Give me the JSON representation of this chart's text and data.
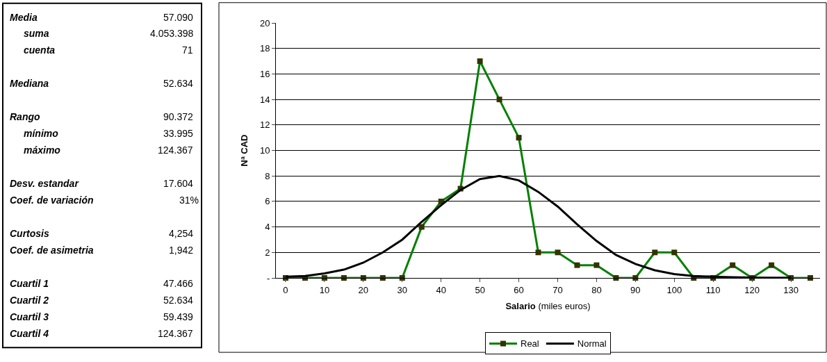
{
  "chart_data": [
    {
      "type": "other",
      "annotations": [
        "Media",
        "57.090",
        "suma",
        "4.053.398",
        "cuenta",
        "71",
        "Mediana",
        "52.634",
        "Rango",
        "90.372",
        "mínimo",
        "33.995",
        "máximo",
        "124.367",
        "Desv. estandar",
        "17.604",
        "Coef. de variación",
        "31%",
        "Curtosis",
        "4,254",
        "Coef. de asimetria",
        "1,942",
        "Cuartil 1",
        "47.466",
        "Cuartil 2",
        "52.634",
        "Cuartil 3",
        "59.439",
        "Cuartil 4",
        "124.367"
      ]
    },
    {
      "type": "line",
      "xlabel": "Salario (miles euros)",
      "ylabel": "Nª CAD",
      "categories": [
        "0",
        null,
        "10",
        null,
        "20",
        null,
        "30",
        null,
        "40",
        null,
        "50",
        null,
        "60",
        null,
        "70",
        null,
        "80",
        null,
        "90",
        null,
        "100",
        null,
        "110",
        null,
        "120",
        null,
        "130",
        null
      ],
      "series": [
        {
          "name": "Real",
          "color": "#008000",
          "marker": "square",
          "values": [
            0,
            0,
            0,
            0,
            0,
            0,
            0,
            4,
            6,
            7,
            17,
            14,
            11,
            2,
            2,
            1,
            1,
            0,
            0,
            2,
            2,
            0,
            0,
            1,
            0,
            1,
            0,
            0
          ]
        },
        {
          "name": "Normal",
          "color": "#000000",
          "values": [
            0.1,
            0.15,
            0.35,
            0.65,
            1.2,
            2,
            3,
            4.4,
            5.7,
            6.9,
            7.75,
            8,
            7.65,
            6.75,
            5.6,
            4.2,
            2.9,
            1.8,
            1.1,
            0.6,
            0.3,
            0.15,
            0.1,
            0.05,
            0.03,
            0.01,
            0.01,
            null
          ]
        }
      ],
      "ylim": [
        0,
        20
      ],
      "yticks": [
        {
          "value": 0,
          "label": "-"
        },
        2,
        4,
        6,
        8,
        10,
        12,
        14,
        16,
        18,
        20
      ],
      "grid": "y",
      "legend": "bottom"
    }
  ]
}
